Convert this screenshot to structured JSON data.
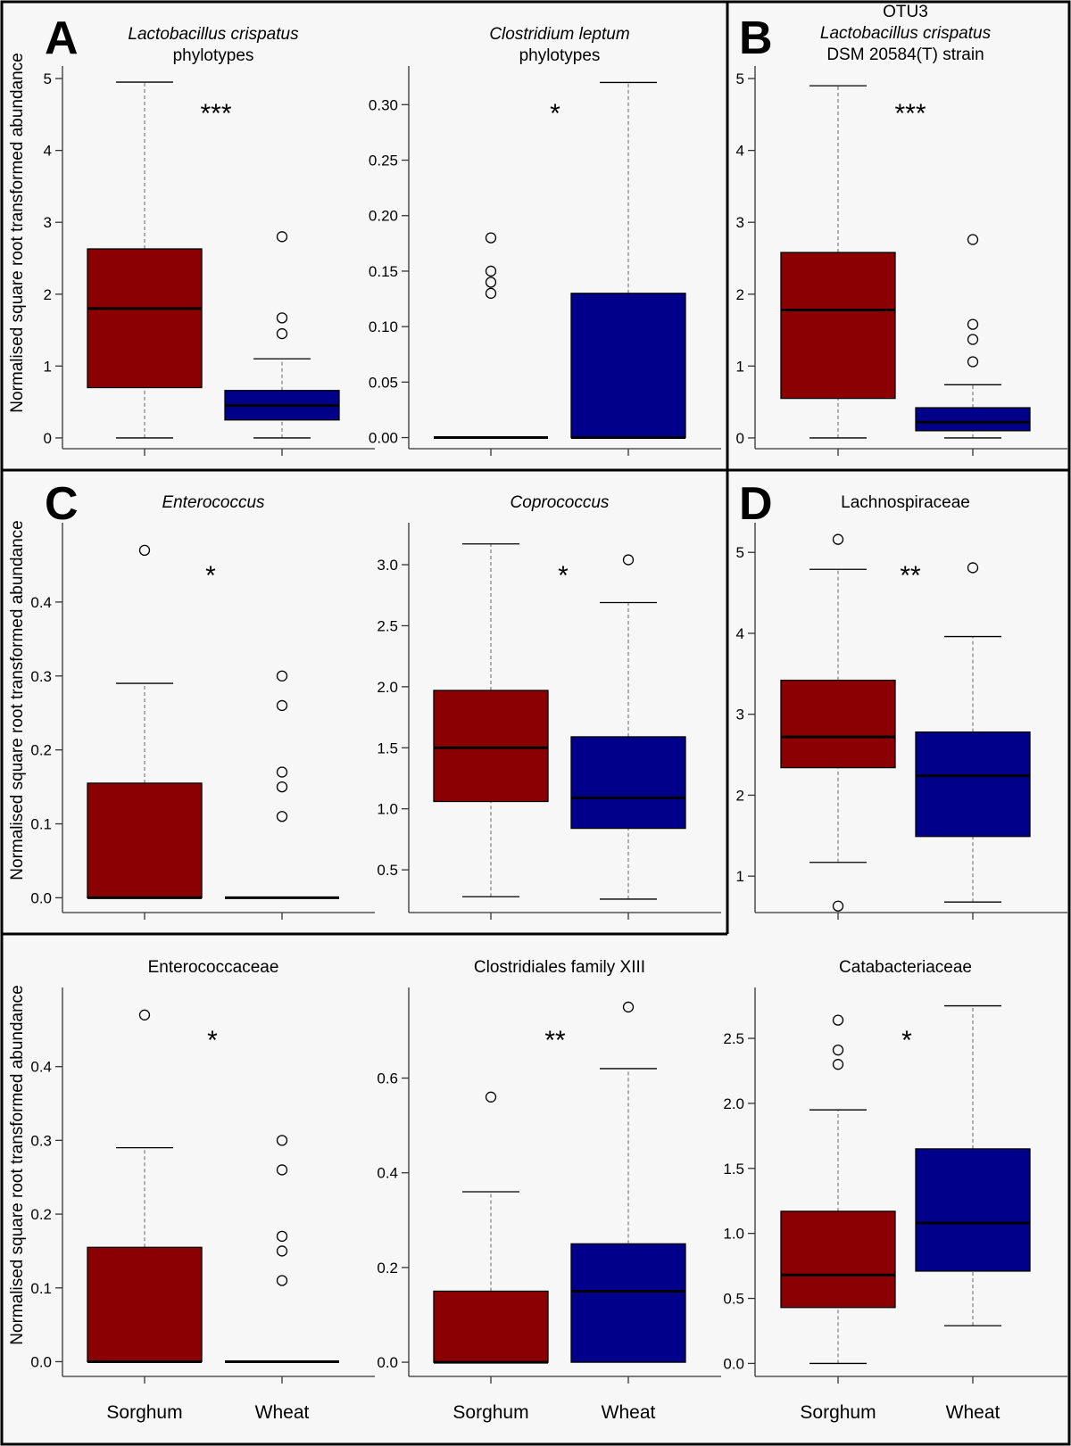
{
  "panel_labels": {
    "A": "A",
    "B": "B",
    "C": "C",
    "D": "D"
  },
  "ylabel": "Normalised square root transformed abundance",
  "group_labels": [
    "Sorghum",
    "Wheat"
  ],
  "colors": {
    "sorghum": "#8b0000",
    "wheat": "#00008b",
    "background": "#f7f7f7",
    "frame": "#000000"
  },
  "chart_data": [
    {
      "id": "lacto-phylotypes",
      "type": "box",
      "title_lines": [
        {
          "text": "Lactobacillus crispatus",
          "italic": true
        },
        {
          "text": "phylotypes",
          "italic": false
        }
      ],
      "significance": "***",
      "ylim": [
        -0.15,
        5.1
      ],
      "yticks": [
        0,
        1,
        2,
        3,
        4,
        5
      ],
      "ytick_labels": [
        "0",
        "1",
        "2",
        "3",
        "4",
        "5"
      ],
      "groups": [
        {
          "name": "Sorghum",
          "min": 0,
          "q1": 0.7,
          "median": 1.8,
          "q3": 2.63,
          "max": 4.95,
          "outliers": []
        },
        {
          "name": "Wheat",
          "min": 0,
          "q1": 0.25,
          "median": 0.45,
          "q3": 0.66,
          "max": 1.1,
          "outliers": [
            1.45,
            1.67,
            2.8
          ]
        }
      ]
    },
    {
      "id": "clostridium-leptum",
      "type": "box",
      "title_lines": [
        {
          "text": "Clostridium leptum",
          "italic": true
        },
        {
          "text": "phylotypes",
          "italic": false
        }
      ],
      "significance": "*",
      "ylim": [
        -0.01,
        0.33
      ],
      "yticks": [
        0,
        0.05,
        0.1,
        0.15,
        0.2,
        0.25,
        0.3
      ],
      "ytick_labels": [
        "0.00",
        "0.05",
        "0.10",
        "0.15",
        "0.20",
        "0.25",
        "0.30"
      ],
      "groups": [
        {
          "name": "Sorghum",
          "min": 0,
          "q1": 0,
          "median": 0,
          "q3": 0,
          "max": 0,
          "outliers": [
            0.13,
            0.14,
            0.15,
            0.18
          ]
        },
        {
          "name": "Wheat",
          "min": 0,
          "q1": 0,
          "median": 0,
          "q3": 0.13,
          "max": 0.32,
          "outliers": []
        }
      ]
    },
    {
      "id": "otu3",
      "type": "box",
      "title_lines": [
        {
          "text": "OTU3",
          "italic": false
        },
        {
          "text": "Lactobacillus crispatus",
          "italic": true
        },
        {
          "text": "DSM 20584(T) strain",
          "italic": false
        }
      ],
      "significance": "***",
      "ylim": [
        -0.15,
        5.1
      ],
      "yticks": [
        0,
        1,
        2,
        3,
        4,
        5
      ],
      "ytick_labels": [
        "0",
        "1",
        "2",
        "3",
        "4",
        "5"
      ],
      "groups": [
        {
          "name": "Sorghum",
          "min": 0,
          "q1": 0.55,
          "median": 1.78,
          "q3": 2.58,
          "max": 4.9,
          "outliers": []
        },
        {
          "name": "Wheat",
          "min": 0,
          "q1": 0.1,
          "median": 0.22,
          "q3": 0.42,
          "max": 0.74,
          "outliers": [
            1.06,
            1.37,
            1.58,
            2.76
          ]
        }
      ]
    },
    {
      "id": "enterococcus",
      "type": "box",
      "title_lines": [
        {
          "text": "Enterococcus",
          "italic": true
        }
      ],
      "significance": "*",
      "ylim": [
        -0.02,
        0.5
      ],
      "yticks": [
        0,
        0.1,
        0.2,
        0.3,
        0.4
      ],
      "ytick_labels": [
        "0.0",
        "0.1",
        "0.2",
        "0.3",
        "0.4"
      ],
      "groups": [
        {
          "name": "Sorghum",
          "min": 0,
          "q1": 0,
          "median": 0,
          "q3": 0.155,
          "max": 0.29,
          "outliers": [
            0.47
          ]
        },
        {
          "name": "Wheat",
          "min": 0,
          "q1": 0,
          "median": 0,
          "q3": 0,
          "max": 0,
          "outliers": [
            0.11,
            0.15,
            0.17,
            0.26,
            0.3
          ]
        }
      ]
    },
    {
      "id": "coprococcus",
      "type": "box",
      "title_lines": [
        {
          "text": "Coprococcus",
          "italic": true
        }
      ],
      "significance": "*",
      "ylim": [
        0.15,
        3.3
      ],
      "yticks": [
        0.5,
        1.0,
        1.5,
        2.0,
        2.5,
        3.0
      ],
      "ytick_labels": [
        "0.5",
        "1.0",
        "1.5",
        "2.0",
        "2.5",
        "3.0"
      ],
      "groups": [
        {
          "name": "Sorghum",
          "min": 0.28,
          "q1": 1.06,
          "median": 1.5,
          "q3": 1.97,
          "max": 3.17,
          "outliers": []
        },
        {
          "name": "Wheat",
          "min": 0.26,
          "q1": 0.84,
          "median": 1.09,
          "q3": 1.59,
          "max": 2.69,
          "outliers": [
            3.04
          ]
        }
      ]
    },
    {
      "id": "lachnospiraceae",
      "type": "box",
      "title_lines": [
        {
          "text": "Lachnospiraceae",
          "italic": false
        }
      ],
      "significance": "**",
      "ylim": [
        0.55,
        5.3
      ],
      "yticks": [
        1,
        2,
        3,
        4,
        5
      ],
      "ytick_labels": [
        "1",
        "2",
        "3",
        "4",
        "5"
      ],
      "groups": [
        {
          "name": "Sorghum",
          "min": 1.17,
          "q1": 2.34,
          "median": 2.72,
          "q3": 3.42,
          "max": 4.79,
          "outliers": [
            0.63,
            5.16
          ]
        },
        {
          "name": "Wheat",
          "min": 0.68,
          "q1": 1.49,
          "median": 2.24,
          "q3": 2.78,
          "max": 3.96,
          "outliers": [
            4.81
          ]
        }
      ]
    },
    {
      "id": "enterococcaceae",
      "type": "box",
      "title_lines": [
        {
          "text": "Enterococcaceae",
          "italic": false
        }
      ],
      "significance": "*",
      "ylim": [
        -0.02,
        0.5
      ],
      "yticks": [
        0,
        0.1,
        0.2,
        0.3,
        0.4
      ],
      "ytick_labels": [
        "0.0",
        "0.1",
        "0.2",
        "0.3",
        "0.4"
      ],
      "groups": [
        {
          "name": "Sorghum",
          "min": 0,
          "q1": 0,
          "median": 0,
          "q3": 0.155,
          "max": 0.29,
          "outliers": [
            0.47
          ]
        },
        {
          "name": "Wheat",
          "min": 0,
          "q1": 0,
          "median": 0,
          "q3": 0,
          "max": 0,
          "outliers": [
            0.11,
            0.15,
            0.17,
            0.26,
            0.3
          ]
        }
      ]
    },
    {
      "id": "clostridiales-xiii",
      "type": "box",
      "title_lines": [
        {
          "text": "Clostridiales family XIII",
          "italic": false
        }
      ],
      "significance": "**",
      "ylim": [
        -0.03,
        0.78
      ],
      "yticks": [
        0,
        0.2,
        0.4,
        0.6
      ],
      "ytick_labels": [
        "0.0",
        "0.2",
        "0.4",
        "0.6"
      ],
      "groups": [
        {
          "name": "Sorghum",
          "min": 0,
          "q1": 0,
          "median": 0,
          "q3": 0.15,
          "max": 0.36,
          "outliers": [
            0.56
          ]
        },
        {
          "name": "Wheat",
          "min": 0,
          "q1": 0,
          "median": 0.15,
          "q3": 0.25,
          "max": 0.62,
          "outliers": [
            0.75
          ]
        }
      ]
    },
    {
      "id": "catabacteriaceae",
      "type": "box",
      "title_lines": [
        {
          "text": "Catabacteriaceae",
          "italic": false
        }
      ],
      "significance": "*",
      "ylim": [
        -0.1,
        2.85
      ],
      "yticks": [
        0,
        0.5,
        1.0,
        1.5,
        2.0,
        2.5
      ],
      "ytick_labels": [
        "0.0",
        "0.5",
        "1.0",
        "1.5",
        "2.0",
        "2.5"
      ],
      "groups": [
        {
          "name": "Sorghum",
          "min": 0,
          "q1": 0.43,
          "median": 0.68,
          "q3": 1.17,
          "max": 1.95,
          "outliers": [
            2.3,
            2.41,
            2.64
          ]
        },
        {
          "name": "Wheat",
          "min": 0.29,
          "q1": 0.71,
          "median": 1.08,
          "q3": 1.65,
          "max": 2.75,
          "outliers": []
        }
      ]
    }
  ]
}
